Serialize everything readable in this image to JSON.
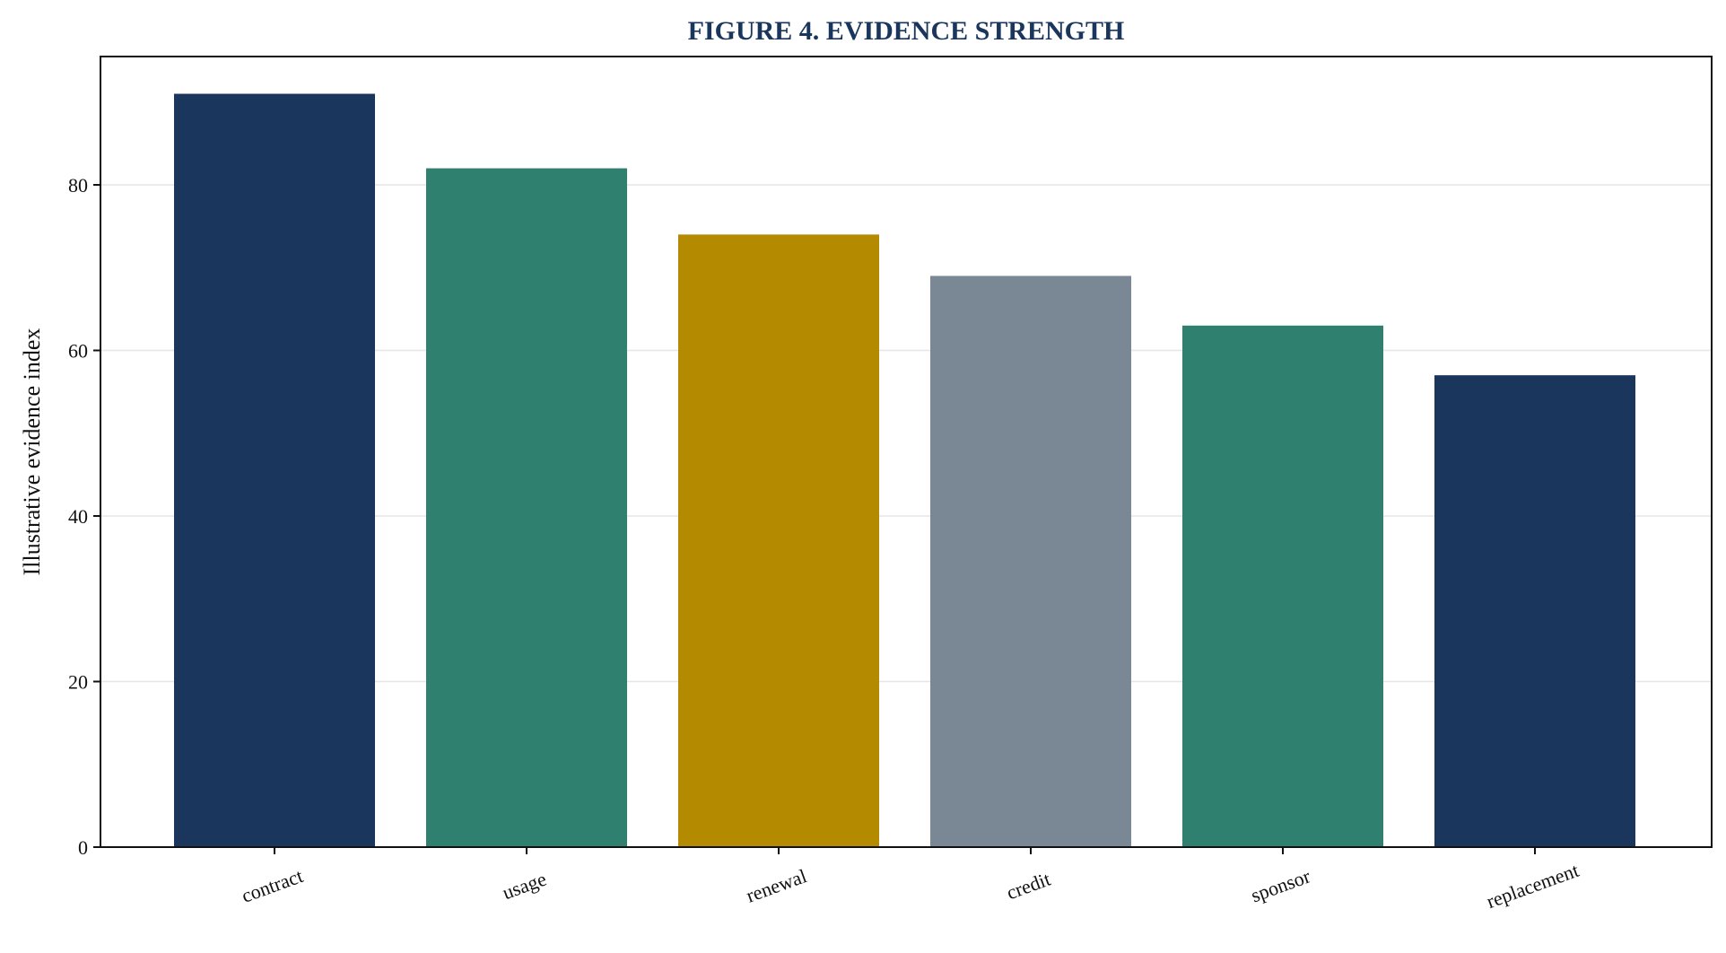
{
  "chart_data": {
    "type": "bar",
    "title": "FIGURE 4. EVIDENCE STRENGTH",
    "xlabel": "",
    "ylabel": "Illustrative evidence index",
    "categories": [
      "contract",
      "usage",
      "renewal",
      "credit",
      "sponsor",
      "replacement"
    ],
    "values": [
      91,
      82,
      74,
      69,
      63,
      57
    ],
    "bar_colors": [
      "#1a365d",
      "#2f806f",
      "#b38a00",
      "#7a8795",
      "#2f806f",
      "#1a365d"
    ],
    "ylim": [
      0,
      95.5
    ],
    "yticks": [
      0,
      20,
      40,
      60,
      80
    ],
    "grid": true,
    "x_tick_rotation": "angled",
    "title_color": "#1a365d",
    "grid_color": "#e6e6e6",
    "axis_color": "#111111"
  }
}
